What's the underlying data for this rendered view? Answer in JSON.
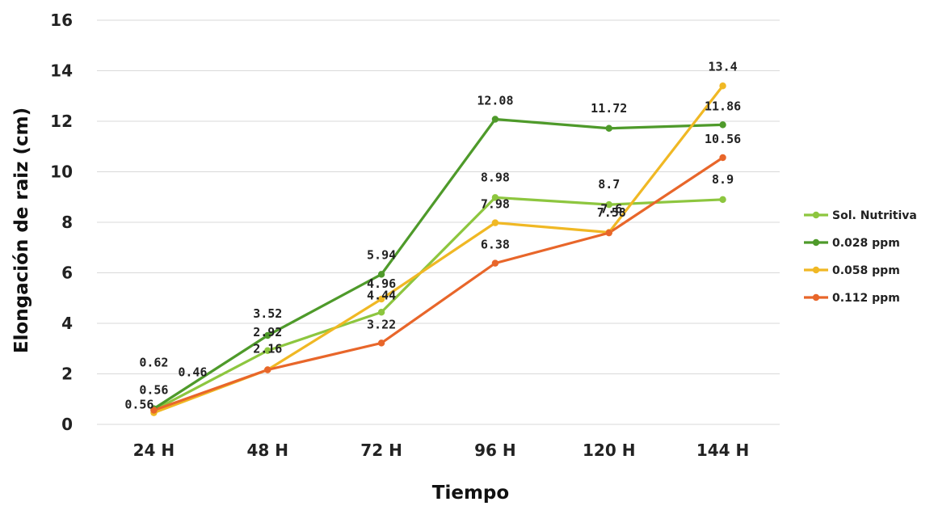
{
  "chart_data": {
    "type": "line",
    "title": "",
    "xlabel": "Tiempo",
    "ylabel": "Elongación de raiz (cm)",
    "categories": [
      "24 H",
      "48 H",
      "72 H",
      "96 H",
      "120 H",
      "144 H"
    ],
    "ylim": [
      0,
      16
    ],
    "yticks": [
      0,
      2,
      4,
      6,
      8,
      10,
      12,
      14,
      16
    ],
    "grid": true,
    "legend_position": "right",
    "series": [
      {
        "name": "Sol. Nutritiva",
        "color": "#8dc63f",
        "values": [
          0.56,
          2.92,
          4.44,
          8.98,
          8.7,
          8.9
        ]
      },
      {
        "name": "0.028 ppm",
        "color": "#4e9a2a",
        "values": [
          0.62,
          3.52,
          5.94,
          12.08,
          11.72,
          11.86
        ]
      },
      {
        "name": "0.058 ppm",
        "color": "#f0b824",
        "values": [
          0.46,
          2.16,
          4.96,
          7.98,
          7.6,
          13.4
        ]
      },
      {
        "name": "0.112 ppm",
        "color": "#e8662a",
        "values": [
          0.56,
          2.16,
          3.22,
          6.38,
          7.58,
          10.56
        ]
      }
    ],
    "data_labels": [
      {
        "text": "0.56",
        "series": 0,
        "point": 0
      },
      {
        "text": "0.62",
        "series": 1,
        "point": 0
      },
      {
        "text": "0.46",
        "series": 2,
        "point": 0
      },
      {
        "text": "0.56",
        "series": 3,
        "point": 0
      },
      {
        "text": "2.92",
        "series": 0,
        "point": 1
      },
      {
        "text": "3.52",
        "series": 1,
        "point": 1
      },
      {
        "text": "2.16",
        "series": 2,
        "point": 1
      },
      {
        "text": "4.44",
        "series": 0,
        "point": 2
      },
      {
        "text": "5.94",
        "series": 1,
        "point": 2
      },
      {
        "text": "4.96",
        "series": 2,
        "point": 2
      },
      {
        "text": "3.22",
        "series": 3,
        "point": 2
      },
      {
        "text": "8.98",
        "series": 0,
        "point": 3
      },
      {
        "text": "12.08",
        "series": 1,
        "point": 3
      },
      {
        "text": "7.98",
        "series": 2,
        "point": 3
      },
      {
        "text": "6.38",
        "series": 3,
        "point": 3
      },
      {
        "text": "8.7",
        "series": 0,
        "point": 4
      },
      {
        "text": "11.72",
        "series": 1,
        "point": 4
      },
      {
        "text": "7.6",
        "series": 2,
        "point": 4
      },
      {
        "text": "7.58",
        "series": 3,
        "point": 4
      },
      {
        "text": "8.9",
        "series": 0,
        "point": 5
      },
      {
        "text": "11.86",
        "series": 1,
        "point": 5
      },
      {
        "text": "13.4",
        "series": 2,
        "point": 5
      },
      {
        "text": "10.56",
        "series": 3,
        "point": 5
      }
    ]
  }
}
